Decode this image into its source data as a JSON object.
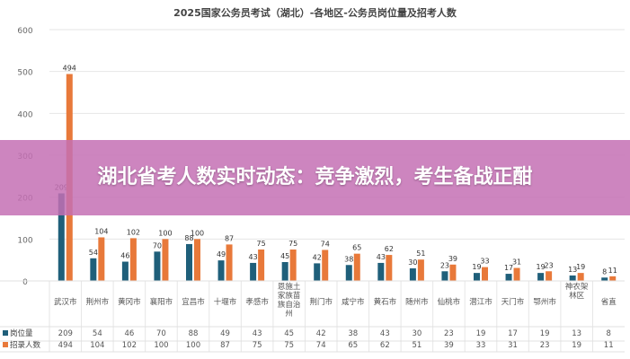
{
  "banner": {
    "text": "湖北省考人数实时动态：竞争激烈，考生备战正酣"
  },
  "colors": {
    "positions": "#1f5f7a",
    "recruits": "#e8793a",
    "banner": "#c470b4"
  },
  "chart_data": {
    "type": "bar",
    "title": "2025国家公务员考试（湖北）-各地区-公务员岗位量及招考人数",
    "categories": [
      "武汉市",
      "荆州市",
      "黄冈市",
      "襄阳市",
      "宜昌市",
      "十堰市",
      "孝感市",
      "恩施土家族苗族自治州",
      "荆门市",
      "咸宁市",
      "黄石市",
      "随州市",
      "仙桃市",
      "潜江市",
      "天门市",
      "鄂州市",
      "神农架林区",
      "省直"
    ],
    "series": [
      {
        "name": "岗位量",
        "values": [
          209,
          54,
          46,
          70,
          88,
          49,
          43,
          45,
          42,
          38,
          43,
          30,
          23,
          19,
          17,
          19,
          13,
          8
        ]
      },
      {
        "name": "招录人数",
        "values": [
          494,
          104,
          102,
          100,
          100,
          87,
          75,
          75,
          74,
          65,
          62,
          51,
          39,
          33,
          31,
          23,
          19,
          11
        ]
      }
    ],
    "ylim": [
      0,
      600
    ],
    "yticks": [
      0,
      100,
      200,
      300,
      400,
      500,
      600
    ],
    "grid": true,
    "legend": "data-table"
  }
}
